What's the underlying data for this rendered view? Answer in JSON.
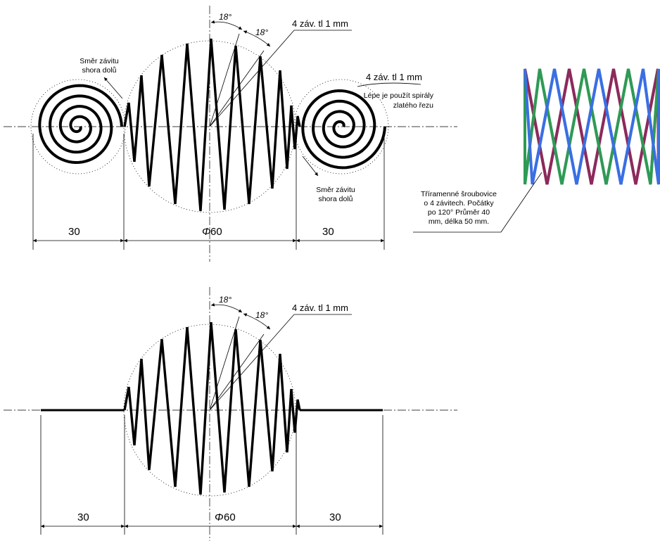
{
  "top_drawing": {
    "dim_left": "30",
    "dim_center": "60",
    "dim_center_symbol": "Φ",
    "dim_right": "30",
    "angle_1": "18°",
    "angle_2": "18°",
    "leader_thread": "4 záv. tl 1 mm",
    "leader_spiral": "4 záv.  tl 1 mm",
    "note_golden": [
      "Lépe je použít spirály",
      "zlatého řezu"
    ],
    "dir_left": [
      "Směr závitu",
      "shora dolů"
    ],
    "dir_right": [
      "Směr závitu",
      "shora dolů"
    ]
  },
  "helix_note": [
    "Tříramenné šroubovice",
    "o 4 závitech. Počátky",
    "po 120° Průměr 40",
    "mm, délka 50 mm."
  ],
  "helix_colors": {
    "strand_a": "#8c2a5c",
    "strand_b": "#2f9a55",
    "strand_c": "#3a6fe3"
  },
  "bottom_drawing": {
    "dim_left": "30",
    "dim_center": "60",
    "dim_center_symbol": "Φ",
    "dim_right": "30",
    "angle_1": "18°",
    "angle_2": "18°",
    "leader_thread": "4 záv.  tl 1 mm"
  }
}
